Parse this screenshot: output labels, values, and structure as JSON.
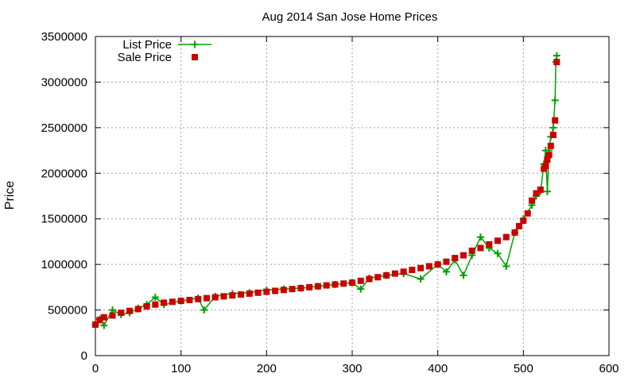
{
  "chart_data": {
    "type": "scatter",
    "title": "Aug 2014 San Jose Home Prices",
    "xlabel": "",
    "ylabel": "Price",
    "xlim": [
      0,
      600
    ],
    "ylim": [
      0,
      3500000
    ],
    "xticks": [
      "0",
      "100",
      "200",
      "300",
      "400",
      "500",
      "600"
    ],
    "yticks": [
      "0",
      "500000",
      "1000000",
      "1500000",
      "2000000",
      "2500000",
      "3000000",
      "3500000"
    ],
    "grid": true,
    "legend_position": "top-left",
    "colors": {
      "list": "#00a000",
      "sale": "#cc0000"
    },
    "series": [
      {
        "name": "List Price",
        "style": "linespoints",
        "marker": "plus",
        "color": "#00a000",
        "x": [
          0,
          5,
          10,
          20,
          30,
          40,
          50,
          60,
          70,
          80,
          100,
          120,
          127,
          140,
          160,
          180,
          200,
          220,
          240,
          260,
          280,
          300,
          310,
          320,
          340,
          360,
          380,
          400,
          410,
          420,
          430,
          440,
          450,
          460,
          470,
          480,
          490,
          500,
          510,
          515,
          520,
          524,
          526,
          528,
          530,
          532,
          535,
          537,
          538,
          539
        ],
        "y": [
          340000,
          400000,
          330000,
          500000,
          450000,
          470000,
          520000,
          560000,
          640000,
          560000,
          600000,
          630000,
          500000,
          650000,
          680000,
          690000,
          720000,
          730000,
          740000,
          760000,
          780000,
          800000,
          730000,
          850000,
          880000,
          900000,
          840000,
          1000000,
          920000,
          1050000,
          880000,
          1100000,
          1300000,
          1180000,
          1120000,
          980000,
          1350000,
          1500000,
          1650000,
          1750000,
          1800000,
          2100000,
          2250000,
          1800000,
          2250000,
          2400000,
          2500000,
          2800000,
          3220000,
          3290000
        ]
      },
      {
        "name": "Sale Price",
        "style": "points",
        "marker": "square",
        "color": "#cc0000",
        "x": [
          0,
          5,
          10,
          20,
          30,
          40,
          50,
          60,
          70,
          80,
          90,
          100,
          110,
          120,
          130,
          140,
          150,
          160,
          170,
          180,
          190,
          200,
          210,
          220,
          230,
          240,
          250,
          260,
          270,
          280,
          290,
          300,
          310,
          320,
          330,
          340,
          350,
          360,
          370,
          380,
          390,
          400,
          410,
          420,
          430,
          440,
          450,
          460,
          470,
          480,
          490,
          495,
          500,
          505,
          510,
          515,
          520,
          524,
          526,
          528,
          530,
          532,
          535,
          537,
          539
        ],
        "y": [
          340000,
          390000,
          420000,
          440000,
          470000,
          490000,
          510000,
          540000,
          560000,
          580000,
          590000,
          600000,
          610000,
          620000,
          630000,
          640000,
          650000,
          660000,
          670000,
          680000,
          690000,
          700000,
          710000,
          720000,
          730000,
          740000,
          750000,
          760000,
          770000,
          780000,
          790000,
          800000,
          820000,
          840000,
          860000,
          880000,
          900000,
          920000,
          940000,
          960000,
          980000,
          1000000,
          1030000,
          1070000,
          1100000,
          1150000,
          1180000,
          1220000,
          1260000,
          1300000,
          1350000,
          1420000,
          1480000,
          1560000,
          1700000,
          1780000,
          1820000,
          2050000,
          2080000,
          2150000,
          2200000,
          2300000,
          2420000,
          2580000,
          3220000
        ]
      }
    ]
  }
}
